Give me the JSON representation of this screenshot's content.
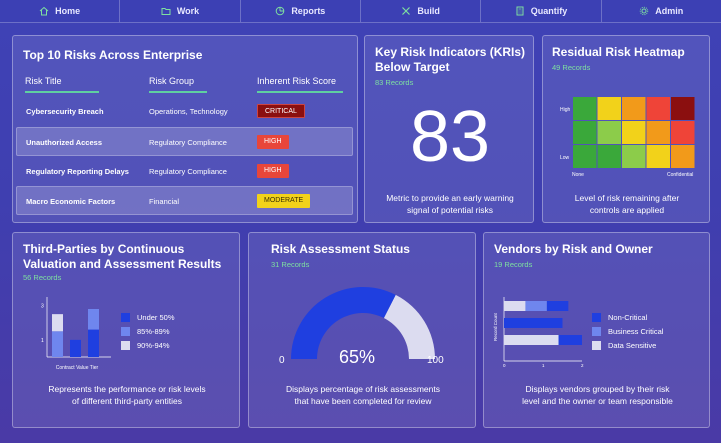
{
  "nav": [
    {
      "label": "Home",
      "icon": "home-icon"
    },
    {
      "label": "Work",
      "icon": "folder-icon"
    },
    {
      "label": "Reports",
      "icon": "pie-chart-icon"
    },
    {
      "label": "Build",
      "icon": "tools-icon"
    },
    {
      "label": "Quantify",
      "icon": "calculator-icon"
    },
    {
      "label": "Admin",
      "icon": "gear-icon"
    }
  ],
  "top_risks": {
    "title": "Top 10 Risks Across Enterprise",
    "headers": [
      "Risk Title",
      "Risk Group",
      "Inherent Risk Score"
    ],
    "rows": [
      {
        "title": "Cybersecurity Breach",
        "group": "Operations, Technology",
        "score": "CRITICAL",
        "color": "#8b0f0f"
      },
      {
        "title": "Unauthorized Access",
        "group": "Regulatory Compliance",
        "score": "HIGH",
        "color": "#e8463a"
      },
      {
        "title": "Regulatory Reporting Delays",
        "group": "Regulatory Compliance",
        "score": "HIGH",
        "color": "#e8463a"
      },
      {
        "title": "Macro Economic Factors",
        "group": "Financial",
        "score": "MODERATE",
        "color": "#f2d21a"
      }
    ]
  },
  "kri": {
    "title_line1": "Key Risk Indicators (KRIs)",
    "title_line2": "Below Target",
    "records": "83 Records",
    "value": "83",
    "desc_line1": "Metric to provide an early warning",
    "desc_line2": "signal of potential risks"
  },
  "heatmap": {
    "title": "Residual Risk Heatmap",
    "records": "49 Records",
    "y_high": "High",
    "y_low": "Low",
    "x_left": "None",
    "x_right": "Confidential",
    "grid": [
      [
        "#3aa83a",
        "#f2d21a",
        "#f29a1a",
        "#ef4438",
        "#8b0f0f"
      ],
      [
        "#3aa83a",
        "#8ccc4a",
        "#f2d21a",
        "#f29a1a",
        "#ef4438"
      ],
      [
        "#3aa83a",
        "#3aa83a",
        "#8ccc4a",
        "#f2d21a",
        "#f29a1a"
      ]
    ],
    "desc_line1": "Level of risk remaining after",
    "desc_line2": "controls are applied"
  },
  "third_parties": {
    "title_line1": "Third-Parties by Continuous",
    "title_line2": "Valuation and Assessment Results",
    "records": "56 Records",
    "desc_line1": "Represents the performance or risk levels",
    "desc_line2": "of different third-party entities"
  },
  "assessment": {
    "title": "Risk Assessment Status",
    "records": "31 Records",
    "min_label": "0",
    "max_label": "100",
    "percent": 65,
    "percent_label": "65%",
    "color_done": "#1f3fe0",
    "color_remaining": "#dcdcf0",
    "desc_line1": "Displays percentage of risk assessments",
    "desc_line2": "that have been completed for review"
  },
  "vendors": {
    "title": "Vendors by Risk and Owner",
    "records": "19 Records",
    "desc_line1": "Displays vendors grouped by their risk",
    "desc_line2": "level and the owner or team responsible"
  },
  "chart_data": [
    {
      "type": "bar",
      "stacked": true,
      "title": "Third-Parties by Continuous Valuation and Assessment Results",
      "xlabel": "Contract Value Tier",
      "ylabel": "",
      "y_ticks": [
        "1",
        "3"
      ],
      "ylim": [
        0,
        3.5
      ],
      "categories": [
        "",
        "",
        ""
      ],
      "series": [
        {
          "name": "Under 50%",
          "color": "#1f3fe0",
          "values": [
            0,
            1,
            1.6
          ]
        },
        {
          "name": "85%-89%",
          "color": "#6f86ee",
          "values": [
            1.5,
            0,
            1.2
          ]
        },
        {
          "name": "90%-94%",
          "color": "#dcdcf0",
          "values": [
            1,
            0,
            0
          ]
        }
      ],
      "legend": "right"
    },
    {
      "type": "bar",
      "orientation": "horizontal",
      "stacked": true,
      "title": "Vendors by Risk and Owner",
      "xlabel": "",
      "ylabel": "Record Count",
      "x_ticks": [
        "0",
        "1",
        "2"
      ],
      "xlim": [
        0,
        2
      ],
      "categories": [
        "",
        "",
        ""
      ],
      "series": [
        {
          "name": "Non-Critical",
          "color": "#1f3fe0",
          "values": [
            0.55,
            1.5,
            0.6
          ]
        },
        {
          "name": "Business Critical",
          "color": "#6f86ee",
          "values": [
            0.55,
            0,
            0
          ]
        },
        {
          "name": "Data Sensitive",
          "color": "#dcdcf0",
          "values": [
            0.55,
            0,
            1.4
          ]
        }
      ],
      "legend": "right"
    }
  ]
}
